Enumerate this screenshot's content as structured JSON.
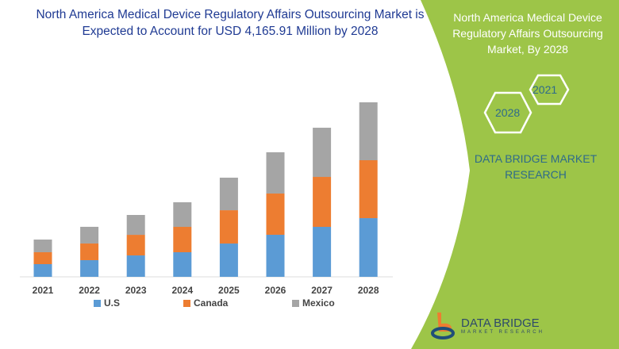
{
  "title": "North America Medical Device Regulatory Affairs Outsourcing Market is Expected to Account for USD 4,165.91 Million by 2028",
  "side_panel": {
    "title": "North America Medical Device Regulatory Affairs Outsourcing Market, By 2028",
    "hex_years": [
      "2021",
      "2028"
    ],
    "brand_text": "DATA BRIDGE MARKET RESEARCH",
    "logo_name": "DATA BRIDGE",
    "logo_sub": "MARKET RESEARCH",
    "panel_color": "#9dc548"
  },
  "chart_data": {
    "type": "bar",
    "stacked": true,
    "categories": [
      "2021",
      "2022",
      "2023",
      "2024",
      "2025",
      "2026",
      "2027",
      "2028"
    ],
    "series": [
      {
        "name": "U.S",
        "color": "#5b9bd5",
        "values": [
          303,
          398,
          511,
          587,
          795,
          1004,
          1193,
          1401
        ]
      },
      {
        "name": "Canada",
        "color": "#ed7d31",
        "values": [
          284,
          398,
          492,
          606,
          795,
          985,
          1193,
          1383
        ]
      },
      {
        "name": "Mexico",
        "color": "#a5a5a5",
        "values": [
          303,
          398,
          474,
          587,
          777,
          985,
          1174,
          1383
        ]
      }
    ],
    "ylim": [
      0,
      4200
    ],
    "grid": false,
    "legend": "bottom"
  }
}
